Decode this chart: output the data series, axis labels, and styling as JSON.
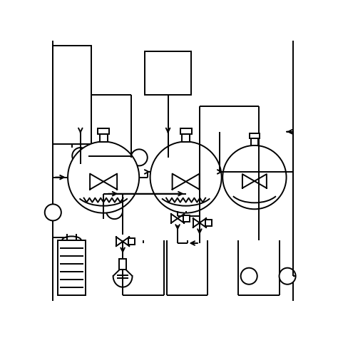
{
  "bg_color": "#ffffff",
  "line_color": "#000000",
  "lw": 1.4,
  "figsize": [
    4.74,
    4.74
  ],
  "dpi": 100,
  "xlim": [
    0,
    47.4
  ],
  "ylim": [
    0,
    47.4
  ]
}
